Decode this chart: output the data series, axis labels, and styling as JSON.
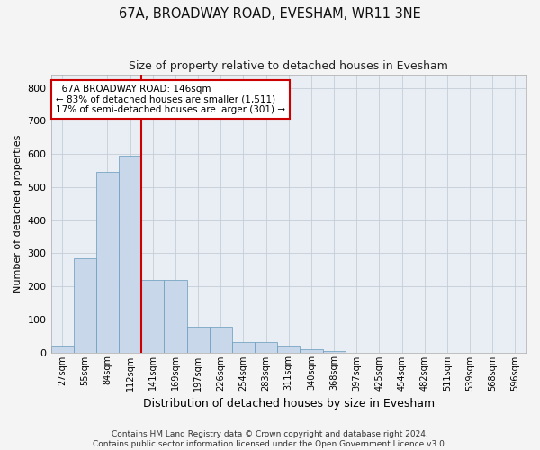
{
  "title": "67A, BROADWAY ROAD, EVESHAM, WR11 3NE",
  "subtitle": "Size of property relative to detached houses in Evesham",
  "xlabel": "Distribution of detached houses by size in Evesham",
  "ylabel": "Number of detached properties",
  "bar_color": "#c8d8ea",
  "bar_edge_color": "#6699bb",
  "background_color": "#e8eef4",
  "grid_color": "#c5cdd8",
  "footer": "Contains HM Land Registry data © Crown copyright and database right 2024.\nContains public sector information licensed under the Open Government Licence v3.0.",
  "categories": [
    "27sqm",
    "55sqm",
    "84sqm",
    "112sqm",
    "141sqm",
    "169sqm",
    "197sqm",
    "226sqm",
    "254sqm",
    "283sqm",
    "311sqm",
    "340sqm",
    "368sqm",
    "397sqm",
    "425sqm",
    "454sqm",
    "482sqm",
    "511sqm",
    "539sqm",
    "568sqm",
    "596sqm"
  ],
  "values": [
    20,
    285,
    545,
    595,
    220,
    220,
    78,
    78,
    32,
    32,
    20,
    10,
    5,
    0,
    0,
    0,
    0,
    0,
    0,
    0,
    0
  ],
  "ylim": [
    0,
    840
  ],
  "yticks": [
    0,
    100,
    200,
    300,
    400,
    500,
    600,
    700,
    800
  ],
  "vline_index": 4,
  "annotation_line1": "  67A BROADWAY ROAD: 146sqm",
  "annotation_line2": "← 83% of detached houses are smaller (1,511)",
  "annotation_line3": "17% of semi-detached houses are larger (301) →",
  "annotation_box_color": "#ffffff",
  "annotation_border_color": "#cc0000",
  "vline_color": "#cc0000",
  "fig_bg": "#f4f4f4"
}
